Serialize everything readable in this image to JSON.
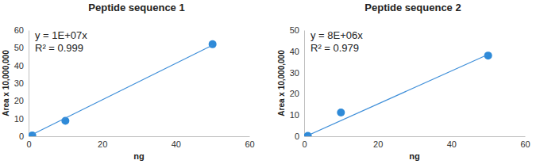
{
  "chart_data": [
    {
      "type": "scatter",
      "title": "Peptide sequence 1",
      "x_label": "ng",
      "y_label": "Area x 10,000,000",
      "annotations": [
        "y = 1E+07x",
        "R² = 0.999"
      ],
      "series": [
        {
          "type": "scatter",
          "marker": "circle",
          "color": "#2e8ad8",
          "x": [
            1,
            10,
            50
          ],
          "values": [
            0.5,
            8.7,
            52
          ]
        },
        {
          "type": "line",
          "line_style": "solid",
          "color": "#3f8fd9",
          "x": [
            1,
            50
          ],
          "values": [
            1,
            51.5
          ]
        }
      ],
      "xlim": [
        0,
        60
      ],
      "xticks": [
        0,
        20,
        40,
        60
      ],
      "ylim": [
        0,
        60
      ],
      "yticks": [
        0,
        10,
        20,
        30,
        40,
        50,
        60
      ],
      "grid": false
    },
    {
      "type": "scatter",
      "title": "Peptide sequence 2",
      "x_label": "ng",
      "y_label": "Area x 10,000,000",
      "annotations": [
        "y = 8E+06x",
        "R² = 0.979"
      ],
      "series": [
        {
          "type": "scatter",
          "marker": "circle",
          "color": "#2e8ad8",
          "x": [
            1,
            10,
            50
          ],
          "values": [
            0.2,
            11.2,
            38
          ]
        },
        {
          "type": "line",
          "line_style": "solid",
          "color": "#3f8fd9",
          "x": [
            0.5,
            50
          ],
          "values": [
            0,
            38.5
          ]
        }
      ],
      "xlim": [
        0,
        60
      ],
      "xticks": [
        0,
        20,
        40,
        60
      ],
      "ylim": [
        0,
        50
      ],
      "yticks": [
        0,
        10,
        20,
        30,
        40,
        50
      ],
      "grid": false
    }
  ]
}
